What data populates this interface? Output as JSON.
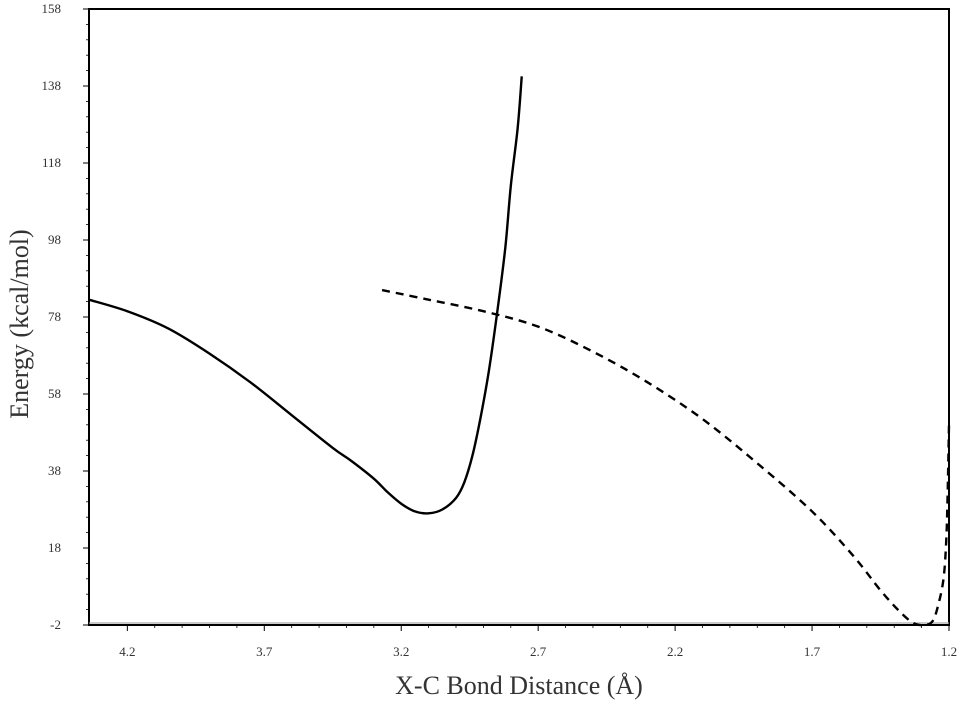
{
  "chart_data": {
    "type": "line",
    "title": "",
    "xlabel": "X-C Bond Distance (Å)",
    "ylabel": "Energy (kcal/mol)",
    "xlim": [
      4.34,
      1.2
    ],
    "ylim": [
      -2,
      158
    ],
    "x_reversed": true,
    "x_ticks": [
      4.2,
      3.7,
      3.2,
      2.7,
      2.2,
      1.7,
      1.2
    ],
    "x_tick_labels": [
      "4.2",
      "3.7",
      "3.2",
      "2.7",
      "2.2",
      "1.7",
      "1.2"
    ],
    "y_ticks": [
      -2,
      18,
      38,
      58,
      78,
      98,
      118,
      138,
      158
    ],
    "y_tick_labels": [
      "-2",
      "18",
      "38",
      "58",
      "78",
      "98",
      "118",
      "138",
      "158"
    ],
    "grid": false,
    "legend": "none",
    "series": [
      {
        "style": "solid",
        "color": "#000000",
        "points": [
          [
            4.34,
            82.5
          ],
          [
            4.2,
            79.5
          ],
          [
            4.05,
            75.0
          ],
          [
            3.9,
            68.5
          ],
          [
            3.75,
            61.0
          ],
          [
            3.6,
            52.5
          ],
          [
            3.45,
            44.0
          ],
          [
            3.38,
            40.5
          ],
          [
            3.3,
            36.0
          ],
          [
            3.25,
            32.5
          ],
          [
            3.2,
            29.5
          ],
          [
            3.15,
            27.5
          ],
          [
            3.1,
            27.0
          ],
          [
            3.05,
            28.0
          ],
          [
            3.0,
            31.0
          ],
          [
            2.97,
            35.0
          ],
          [
            2.94,
            42.0
          ],
          [
            2.91,
            52.0
          ],
          [
            2.88,
            64.0
          ],
          [
            2.85,
            79.0
          ],
          [
            2.82,
            96.0
          ],
          [
            2.8,
            112.0
          ],
          [
            2.775,
            127.0
          ],
          [
            2.76,
            140.5
          ]
        ]
      },
      {
        "style": "dashed",
        "color": "#000000",
        "points": [
          [
            3.27,
            85.0
          ],
          [
            3.1,
            82.5
          ],
          [
            2.9,
            79.5
          ],
          [
            2.7,
            75.5
          ],
          [
            2.5,
            69.0
          ],
          [
            2.3,
            61.0
          ],
          [
            2.1,
            51.5
          ],
          [
            1.9,
            40.0
          ],
          [
            1.7,
            27.5
          ],
          [
            1.55,
            16.0
          ],
          [
            1.45,
            7.0
          ],
          [
            1.38,
            1.5
          ],
          [
            1.33,
            -1.5
          ],
          [
            1.29,
            -2.0
          ],
          [
            1.26,
            -1.0
          ],
          [
            1.24,
            3.0
          ],
          [
            1.22,
            10.0
          ],
          [
            1.21,
            20.0
          ],
          [
            1.205,
            32.0
          ],
          [
            1.2,
            50.0
          ]
        ]
      }
    ],
    "baseline": {
      "y": -2,
      "color": "#aaaaaa"
    }
  }
}
